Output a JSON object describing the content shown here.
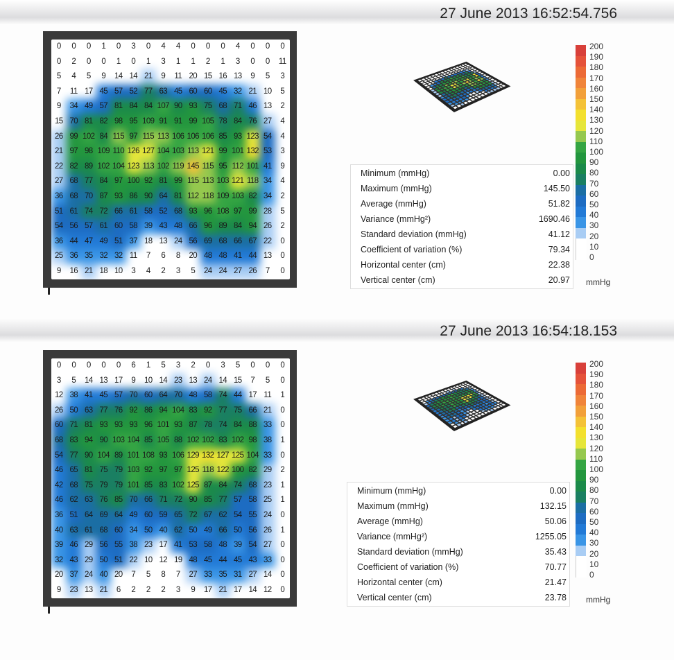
{
  "sections": [
    {
      "timestamp": "27 June 2013 16:52:54.756",
      "stats": [
        {
          "label": "Minimum (mmHg)",
          "value": "0.00"
        },
        {
          "label": "Maximum (mmHg)",
          "value": "145.50"
        },
        {
          "label": "Average (mmHg)",
          "value": "51.82"
        },
        {
          "label": "Variance (mmHg²)",
          "value": "1690.46"
        },
        {
          "label": "Standard deviation (mmHg)",
          "value": "41.12"
        },
        {
          "label": "Coefficient of variation (%)",
          "value": "79.34"
        },
        {
          "label": "Horizontal center (cm)",
          "value": "22.38"
        },
        {
          "label": "Vertical center (cm)",
          "value": "20.97"
        }
      ]
    },
    {
      "timestamp": "27 June 2013 16:54:18.153",
      "stats": [
        {
          "label": "Minimum (mmHg)",
          "value": "0.00"
        },
        {
          "label": "Maximum (mmHg)",
          "value": "132.15"
        },
        {
          "label": "Average (mmHg)",
          "value": "50.06"
        },
        {
          "label": "Variance (mmHg²)",
          "value": "1255.05"
        },
        {
          "label": "Standard deviation (mmHg)",
          "value": "35.43"
        },
        {
          "label": "Coefficient of variation (%)",
          "value": "70.77"
        },
        {
          "label": "Horizontal center (cm)",
          "value": "21.47"
        },
        {
          "label": "Vertical center (cm)",
          "value": "23.78"
        }
      ]
    }
  ],
  "colorbar": {
    "unit": "mmHg",
    "ticks": [
      "200",
      "190",
      "180",
      "170",
      "160",
      "150",
      "140",
      "130",
      "120",
      "110",
      "100",
      "90",
      "80",
      "70",
      "60",
      "50",
      "40",
      "30",
      "20",
      "10",
      "0"
    ],
    "colors": [
      "#d8403a",
      "#e5523a",
      "#ec6a36",
      "#f0843a",
      "#f2a03a",
      "#f4c238",
      "#f3e02e",
      "#e6e63a",
      "#95c84e",
      "#35a543",
      "#23963e",
      "#1b8a4a",
      "#1a7f62",
      "#1b6ea4",
      "#1d6cc2",
      "#227ad6",
      "#3a95e6",
      "#a9cdf4",
      "#ffffff",
      "#ffffff"
    ]
  },
  "chart_data": [
    {
      "type": "heatmap",
      "unit": "mmHg",
      "range": [
        0,
        200
      ],
      "values": [
        [
          0,
          0,
          0,
          1,
          0,
          3,
          0,
          4,
          4,
          0,
          0,
          0,
          4,
          0,
          0,
          0
        ],
        [
          0,
          2,
          0,
          0,
          1,
          0,
          1,
          3,
          1,
          1,
          2,
          1,
          3,
          0,
          0,
          11
        ],
        [
          5,
          4,
          5,
          9,
          14,
          14,
          21,
          9,
          11,
          20,
          15,
          16,
          13,
          9,
          5,
          3
        ],
        [
          7,
          11,
          17,
          45,
          57,
          52,
          77,
          63,
          45,
          60,
          60,
          45,
          32,
          21,
          10,
          5
        ],
        [
          9,
          34,
          49,
          57,
          81,
          84,
          84,
          107,
          90,
          93,
          75,
          68,
          71,
          46,
          13,
          2
        ],
        [
          15,
          70,
          81,
          82,
          98,
          95,
          109,
          91,
          91,
          99,
          105,
          78,
          84,
          76,
          27,
          4
        ],
        [
          26,
          99,
          102,
          84,
          115,
          97,
          115,
          113,
          106,
          106,
          106,
          85,
          93,
          123,
          54,
          4
        ],
        [
          21,
          97,
          98,
          109,
          110,
          126,
          127,
          104,
          103,
          113,
          121,
          99,
          101,
          132,
          53,
          3
        ],
        [
          22,
          82,
          89,
          102,
          104,
          123,
          113,
          102,
          119,
          145,
          115,
          95,
          112,
          101,
          41,
          9
        ],
        [
          27,
          68,
          77,
          84,
          97,
          100,
          92,
          81,
          99,
          115,
          113,
          103,
          121,
          118,
          34,
          4
        ],
        [
          36,
          68,
          70,
          87,
          93,
          86,
          90,
          64,
          81,
          112,
          118,
          109,
          103,
          82,
          34,
          2
        ],
        [
          51,
          61,
          74,
          72,
          66,
          61,
          58,
          52,
          68,
          93,
          96,
          108,
          97,
          99,
          28,
          5
        ],
        [
          54,
          56,
          57,
          61,
          60,
          58,
          39,
          43,
          48,
          66,
          96,
          89,
          84,
          94,
          26,
          2
        ],
        [
          36,
          44,
          47,
          49,
          51,
          37,
          18,
          13,
          24,
          56,
          69,
          68,
          66,
          67,
          22,
          0
        ],
        [
          25,
          36,
          35,
          32,
          32,
          11,
          7,
          6,
          8,
          20,
          48,
          48,
          41,
          44,
          13,
          0
        ],
        [
          9,
          16,
          21,
          18,
          10,
          3,
          4,
          2,
          3,
          5,
          24,
          24,
          27,
          26,
          7,
          0
        ]
      ]
    },
    {
      "type": "heatmap",
      "unit": "mmHg",
      "range": [
        0,
        200
      ],
      "values": [
        [
          0,
          0,
          0,
          0,
          0,
          6,
          1,
          5,
          3,
          2,
          0,
          3,
          5,
          0,
          0,
          0
        ],
        [
          3,
          5,
          14,
          13,
          17,
          9,
          10,
          14,
          23,
          13,
          24,
          14,
          15,
          7,
          5,
          0
        ],
        [
          12,
          38,
          41,
          45,
          57,
          70,
          60,
          64,
          70,
          48,
          58,
          74,
          44,
          17,
          11,
          1
        ],
        [
          26,
          50,
          63,
          77,
          76,
          92,
          86,
          94,
          104,
          83,
          92,
          77,
          75,
          66,
          21,
          0
        ],
        [
          60,
          71,
          81,
          93,
          93,
          93,
          96,
          101,
          93,
          87,
          78,
          74,
          84,
          88,
          33,
          0
        ],
        [
          68,
          83,
          94,
          90,
          103,
          104,
          85,
          105,
          88,
          102,
          102,
          83,
          102,
          98,
          38,
          1
        ],
        [
          54,
          77,
          90,
          104,
          89,
          101,
          108,
          93,
          106,
          129,
          132,
          127,
          125,
          104,
          33,
          0
        ],
        [
          46,
          65,
          81,
          75,
          79,
          103,
          92,
          97,
          97,
          125,
          118,
          122,
          100,
          82,
          29,
          2
        ],
        [
          42,
          68,
          75,
          79,
          79,
          101,
          85,
          83,
          102,
          125,
          87,
          84,
          74,
          68,
          23,
          1
        ],
        [
          46,
          62,
          63,
          76,
          85,
          70,
          66,
          71,
          72,
          90,
          85,
          77,
          57,
          58,
          25,
          1
        ],
        [
          36,
          51,
          64,
          69,
          64,
          49,
          60,
          59,
          65,
          72,
          67,
          62,
          54,
          55,
          24,
          0
        ],
        [
          40,
          63,
          61,
          68,
          60,
          34,
          50,
          40,
          62,
          50,
          49,
          66,
          50,
          56,
          26,
          1
        ],
        [
          39,
          46,
          29,
          56,
          55,
          38,
          23,
          17,
          41,
          53,
          58,
          48,
          39,
          54,
          27,
          0
        ],
        [
          32,
          43,
          29,
          50,
          51,
          22,
          10,
          12,
          19,
          48,
          45,
          44,
          45,
          43,
          33,
          0
        ],
        [
          20,
          37,
          24,
          40,
          20,
          7,
          5,
          8,
          7,
          27,
          33,
          35,
          31,
          27,
          14,
          0
        ],
        [
          9,
          23,
          13,
          21,
          6,
          2,
          2,
          2,
          3,
          9,
          17,
          21,
          17,
          14,
          12,
          0
        ]
      ]
    }
  ]
}
